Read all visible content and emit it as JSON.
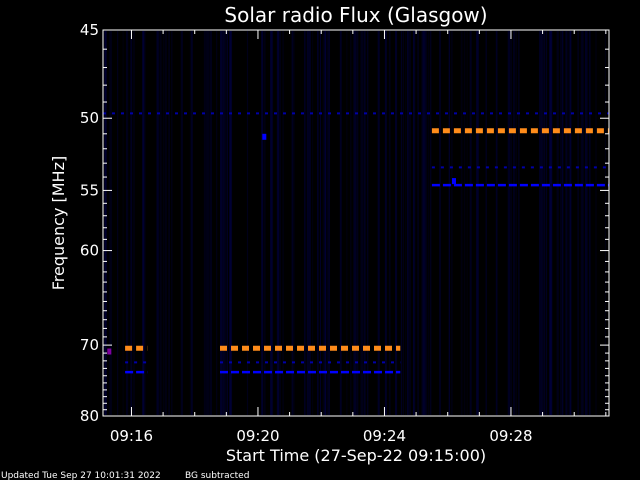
{
  "chart_data": {
    "type": "heatmap",
    "title": "Solar radio Flux (Glasgow)",
    "xlabel": "Start Time (27-Sep-22 09:15:00)",
    "ylabel": "Frequency [MHz]",
    "x_ticks": [
      "09:16",
      "09:20",
      "09:24",
      "09:28"
    ],
    "x_tick_minutes": [
      16,
      20,
      24,
      28
    ],
    "xlim_minutes": [
      15.1,
      31.1
    ],
    "y_ticks": [
      45,
      50,
      55,
      60,
      70,
      80
    ],
    "ylim": [
      45,
      80
    ],
    "y_scale": "reciprocal",
    "background": "#000000",
    "grid": false,
    "colors": {
      "strong": "#ff8c1a",
      "medium": "#0000ff",
      "weak": "#0000a8",
      "noise": "#00003a",
      "spot": "#8000a0"
    },
    "features": [
      {
        "freq": 49.7,
        "t_start": 15.1,
        "t_end": 31.1,
        "color": "weak",
        "dashed": true
      },
      {
        "freq": 70.4,
        "t_start": 15.8,
        "t_end": 16.5,
        "color": "strong",
        "dashed": true
      },
      {
        "freq": 72.2,
        "t_start": 15.8,
        "t_end": 16.5,
        "color": "weak",
        "dashed": true
      },
      {
        "freq": 73.5,
        "t_start": 15.8,
        "t_end": 16.5,
        "color": "medium",
        "dashed": true
      },
      {
        "freq": 70.4,
        "t_start": 18.8,
        "t_end": 24.5,
        "color": "strong",
        "dashed": true
      },
      {
        "freq": 72.2,
        "t_start": 18.8,
        "t_end": 24.5,
        "color": "weak",
        "dashed": true
      },
      {
        "freq": 73.5,
        "t_start": 18.8,
        "t_end": 24.5,
        "color": "medium",
        "dashed": true
      },
      {
        "freq": 50.8,
        "t_start": 25.5,
        "t_end": 31.1,
        "color": "strong",
        "dashed": true
      },
      {
        "freq": 53.3,
        "t_start": 25.5,
        "t_end": 31.1,
        "color": "weak",
        "dashed": true
      },
      {
        "freq": 54.6,
        "t_start": 25.5,
        "t_end": 31.1,
        "color": "medium",
        "dashed": true
      }
    ],
    "spots": [
      {
        "freq": 70.8,
        "t": 15.3,
        "color": "spot"
      },
      {
        "freq": 51.2,
        "t": 20.2,
        "color": "medium"
      },
      {
        "freq": 54.3,
        "t": 26.2,
        "color": "medium"
      }
    ]
  },
  "footer": {
    "updated": "Updated Tue Sep 27 10:01:31 2022",
    "bg_note": "BG subtracted"
  }
}
